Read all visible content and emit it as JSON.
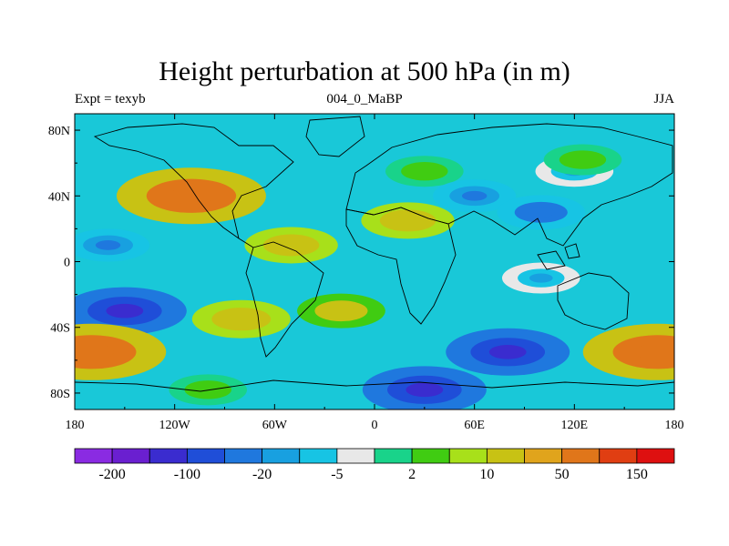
{
  "title": "Height perturbation at 500 hPa (in m)",
  "subtitle_left": "Expt = texyb",
  "subtitle_center": "004_0_MaBP",
  "subtitle_right": "JJA",
  "chart_data": {
    "type": "heatmap",
    "variable": "500 hPa height perturbation",
    "units": "m",
    "x_axis": {
      "range": [
        -180,
        180
      ],
      "ticks": [
        -180,
        -120,
        -60,
        0,
        60,
        120,
        180
      ],
      "tick_labels": [
        "180",
        "120W",
        "60W",
        "0",
        "60E",
        "120E",
        "180"
      ]
    },
    "y_axis": {
      "range": [
        -90,
        90
      ],
      "ticks": [
        80,
        40,
        0,
        -40,
        -80
      ],
      "tick_labels": [
        "80N",
        "40N",
        "0",
        "40S",
        "80S"
      ]
    },
    "colorbar": {
      "colors": [
        "#8a2be2",
        "#6a1fd0",
        "#3a2ccf",
        "#1f4ed8",
        "#1f78de",
        "#18a0e0",
        "#17c4e4",
        "#e8e8e8",
        "#19d38a",
        "#40cc12",
        "#a8e01a",
        "#c8c214",
        "#e0a41c",
        "#e0761a",
        "#e03e12",
        "#de1010"
      ],
      "labels": [
        "-200",
        "-100",
        "-20",
        "-5",
        "2",
        "10",
        "50",
        "150"
      ]
    },
    "field_features": [
      {
        "lon": -110,
        "lat": 40,
        "value": 150
      },
      {
        "lon": -50,
        "lat": 10,
        "value": 40
      },
      {
        "lon": 20,
        "lat": 25,
        "value": 40
      },
      {
        "lon": 30,
        "lat": 55,
        "value": 10
      },
      {
        "lon": 60,
        "lat": 40,
        "value": -20
      },
      {
        "lon": 100,
        "lat": 30,
        "value": -30
      },
      {
        "lon": 120,
        "lat": 55,
        "value": -10
      },
      {
        "lon": 125,
        "lat": 62,
        "value": 10
      },
      {
        "lon": -160,
        "lat": 10,
        "value": -20
      },
      {
        "lon": -150,
        "lat": -30,
        "value": -100
      },
      {
        "lon": -170,
        "lat": -55,
        "value": 150
      },
      {
        "lon": -80,
        "lat": -35,
        "value": 50
      },
      {
        "lon": -20,
        "lat": -30,
        "value": 30
      },
      {
        "lon": 80,
        "lat": -55,
        "value": -100
      },
      {
        "lon": 100,
        "lat": -10,
        "value": -10
      },
      {
        "lon": 170,
        "lat": -55,
        "value": 150
      },
      {
        "lon": 30,
        "lat": -78,
        "value": -100
      },
      {
        "lon": -100,
        "lat": -78,
        "value": 10
      }
    ]
  }
}
